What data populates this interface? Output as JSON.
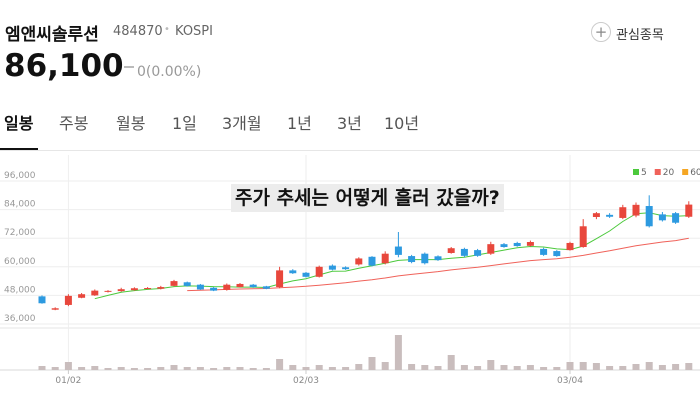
{
  "header": {
    "name": "엠앤씨솔루션",
    "code": "484870",
    "market": "KOSPI",
    "watch_button": "관심종목",
    "price": "86,100",
    "change": "0(0.00%)"
  },
  "tabs": [
    "일봉",
    "주봉",
    "월봉",
    "1일",
    "3개월",
    "1년",
    "3년",
    "10년"
  ],
  "chart_data": {
    "type": "candlestick",
    "annotation": "주가 추세는 어떻게 흘러 갔을까?",
    "categories": [
      null,
      null,
      "01/02",
      null,
      null,
      null,
      null,
      null,
      null,
      null,
      null,
      null,
      null,
      null,
      null,
      null,
      null,
      null,
      null,
      null,
      "02/03",
      null,
      null,
      null,
      null,
      null,
      null,
      null,
      null,
      null,
      null,
      null,
      null,
      null,
      null,
      null,
      null,
      null,
      null,
      null,
      "03/04",
      null,
      null,
      null,
      null,
      null,
      null,
      null,
      null,
      null
    ],
    "open": [
      47600,
      42000,
      44000,
      47000,
      48000,
      49500,
      49800,
      50200,
      50900,
      50800,
      52000,
      53500,
      52500,
      51200,
      50300,
      51500,
      52500,
      51800,
      51500,
      58500,
      57500,
      55800,
      60500,
      59800,
      61000,
      64200,
      61500,
      68500,
      64500,
      65500,
      64400,
      65800,
      67500,
      67000,
      65500,
      69500,
      70000,
      68800,
      67500,
      66600,
      67000,
      68300,
      80900,
      81800,
      80500,
      81500,
      85500,
      82000,
      82500,
      81000
    ],
    "high": [
      48000,
      43000,
      48500,
      49000,
      50500,
      50200,
      51200,
      51400,
      51500,
      52000,
      54500,
      53800,
      52800,
      51500,
      53000,
      53200,
      52800,
      52000,
      60000,
      59000,
      57800,
      60500,
      61000,
      60200,
      64000,
      64500,
      66500,
      74600,
      65000,
      66000,
      64800,
      68300,
      68000,
      67500,
      70500,
      70000,
      70500,
      71000,
      68000,
      67000,
      70500,
      80000,
      83000,
      82500,
      86000,
      87000,
      90000,
      83000,
      83000,
      87500
    ],
    "low": [
      44500,
      41800,
      43500,
      46800,
      47800,
      49200,
      49500,
      50000,
      50600,
      50500,
      51800,
      51700,
      50300,
      49800,
      50000,
      51300,
      51200,
      50600,
      51000,
      57000,
      55500,
      55500,
      58500,
      58700,
      60500,
      60200,
      61000,
      64000,
      61500,
      61000,
      62500,
      65500,
      64000,
      64200,
      65000,
      68000,
      68400,
      68500,
      64600,
      64200,
      66800,
      68000,
      80000,
      80500,
      80000,
      80800,
      76500,
      79000,
      78000,
      80500
    ],
    "close": [
      44700,
      42600,
      47800,
      48500,
      50000,
      49900,
      50600,
      51000,
      51100,
      51500,
      54000,
      52000,
      50500,
      50000,
      52500,
      52800,
      51500,
      50800,
      58500,
      57300,
      55800,
      60000,
      58800,
      59000,
      63500,
      60500,
      65500,
      65000,
      62000,
      61500,
      62800,
      67800,
      64600,
      64600,
      69500,
      68300,
      68700,
      70400,
      65000,
      64500,
      70000,
      77000,
      82500,
      81000,
      85000,
      86000,
      77000,
      79500,
      78500,
      86100
    ],
    "volume": [
      200000,
      150000,
      400000,
      150000,
      200000,
      100000,
      150000,
      100000,
      100000,
      150000,
      250000,
      150000,
      150000,
      100000,
      150000,
      150000,
      100000,
      100000,
      550000,
      250000,
      150000,
      250000,
      150000,
      150000,
      300000,
      650000,
      400000,
      1750000,
      300000,
      250000,
      200000,
      750000,
      250000,
      200000,
      500000,
      250000,
      200000,
      250000,
      150000,
      150000,
      400000,
      400000,
      350000,
      200000,
      200000,
      300000,
      400000,
      250000,
      300000,
      350000
    ],
    "up_color": "#e8473c",
    "down_color": "#2d9ae0",
    "volume_color": "#c9bdbd",
    "moving_averages": [
      {
        "name": "5",
        "color": "#4cc93c",
        "values": [
          null,
          null,
          null,
          null,
          46600,
          48000,
          49300,
          50000,
          50500,
          50900,
          51700,
          52000,
          51900,
          51700,
          51600,
          51500,
          51500,
          51300,
          52800,
          54100,
          55000,
          56600,
          58100,
          58200,
          59400,
          60400,
          61500,
          62700,
          63000,
          63000,
          63000,
          63600,
          64000,
          65000,
          66000,
          67000,
          68000,
          68500,
          68300,
          67500,
          67200,
          68700,
          71800,
          75000,
          79000,
          82300,
          82700,
          81500,
          81200,
          81500
        ]
      },
      {
        "name": "20",
        "color": "#f0625a",
        "values": [
          null,
          null,
          null,
          null,
          null,
          null,
          null,
          null,
          null,
          null,
          null,
          50000,
          50200,
          50300,
          50500,
          50700,
          50800,
          50900,
          51200,
          51500,
          51800,
          52300,
          52800,
          53300,
          54000,
          54600,
          55300,
          56200,
          56800,
          57400,
          58000,
          58700,
          59300,
          59800,
          60500,
          61200,
          61900,
          62600,
          63000,
          63400,
          64000,
          64800,
          65800,
          66700,
          67800,
          68800,
          69600,
          70400,
          71000,
          72000
        ]
      },
      {
        "name": "60",
        "color": "#f5a623"
      }
    ],
    "ylim": [
      36000,
      96000
    ],
    "yticks": [
      {
        "value": 36000,
        "label": "36,000"
      },
      {
        "value": 48000,
        "label": "48,000"
      },
      {
        "value": 60000,
        "label": "60,000"
      },
      {
        "value": 72000,
        "label": "72,000"
      },
      {
        "value": 84000,
        "label": "84,000"
      },
      {
        "value": 96000,
        "label": "96,000"
      }
    ],
    "y2lim": [
      0,
      2000000
    ],
    "grid": true
  }
}
